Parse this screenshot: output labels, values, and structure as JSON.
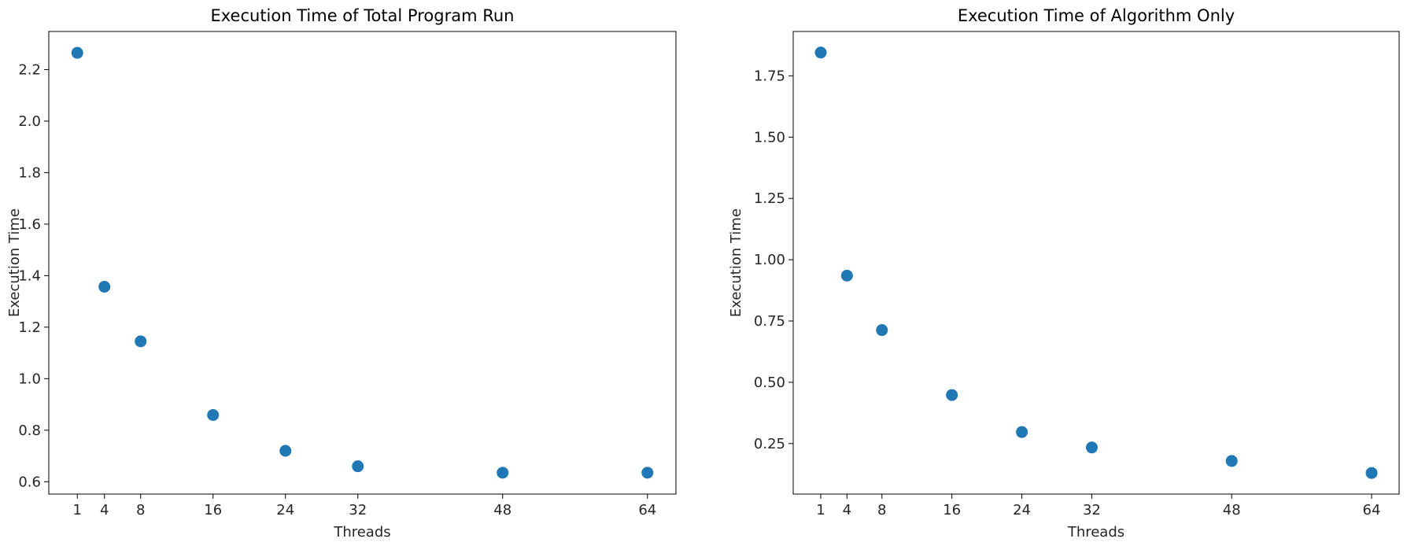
{
  "chart_data": [
    {
      "type": "scatter",
      "title": "Execution Time of Total Program Run",
      "xlabel": "Threads",
      "ylabel": "Execution Time",
      "x": [
        1,
        4,
        8,
        16,
        24,
        32,
        48,
        64
      ],
      "y": [
        2.265,
        1.357,
        1.145,
        0.859,
        0.72,
        0.66,
        0.635,
        0.635
      ],
      "xlim": [
        -2.15,
        67.15
      ],
      "ylim": [
        0.552,
        2.348
      ],
      "xticks": [
        1,
        4,
        8,
        16,
        24,
        32,
        48,
        64
      ],
      "xtick_labels": [
        "1",
        "4",
        "8",
        "16",
        "24",
        "32",
        "48",
        "64"
      ],
      "yticks": [
        0.6,
        0.8,
        1.0,
        1.2,
        1.4,
        1.6,
        1.8,
        2.0,
        2.2
      ],
      "ytick_labels": [
        "0.6",
        "0.8",
        "1.0",
        "1.2",
        "1.4",
        "1.6",
        "1.8",
        "2.0",
        "2.2"
      ],
      "marker_color": "#1f77b4",
      "grid": false
    },
    {
      "type": "scatter",
      "title": "Execution Time of Algorithm Only",
      "xlabel": "Threads",
      "ylabel": "Execution Time",
      "x": [
        1,
        4,
        8,
        16,
        24,
        32,
        48,
        64
      ],
      "y": [
        1.845,
        0.935,
        0.713,
        0.448,
        0.297,
        0.234,
        0.179,
        0.13
      ],
      "xlim": [
        -2.15,
        67.15
      ],
      "ylim": [
        0.044,
        1.931
      ],
      "xticks": [
        1,
        4,
        8,
        16,
        24,
        32,
        48,
        64
      ],
      "xtick_labels": [
        "1",
        "4",
        "8",
        "16",
        "24",
        "32",
        "48",
        "64"
      ],
      "yticks": [
        0.25,
        0.5,
        0.75,
        1.0,
        1.25,
        1.5,
        1.75
      ],
      "ytick_labels": [
        "0.25",
        "0.50",
        "0.75",
        "1.00",
        "1.25",
        "1.50",
        "1.75"
      ],
      "marker_color": "#1f77b4",
      "grid": false
    }
  ]
}
